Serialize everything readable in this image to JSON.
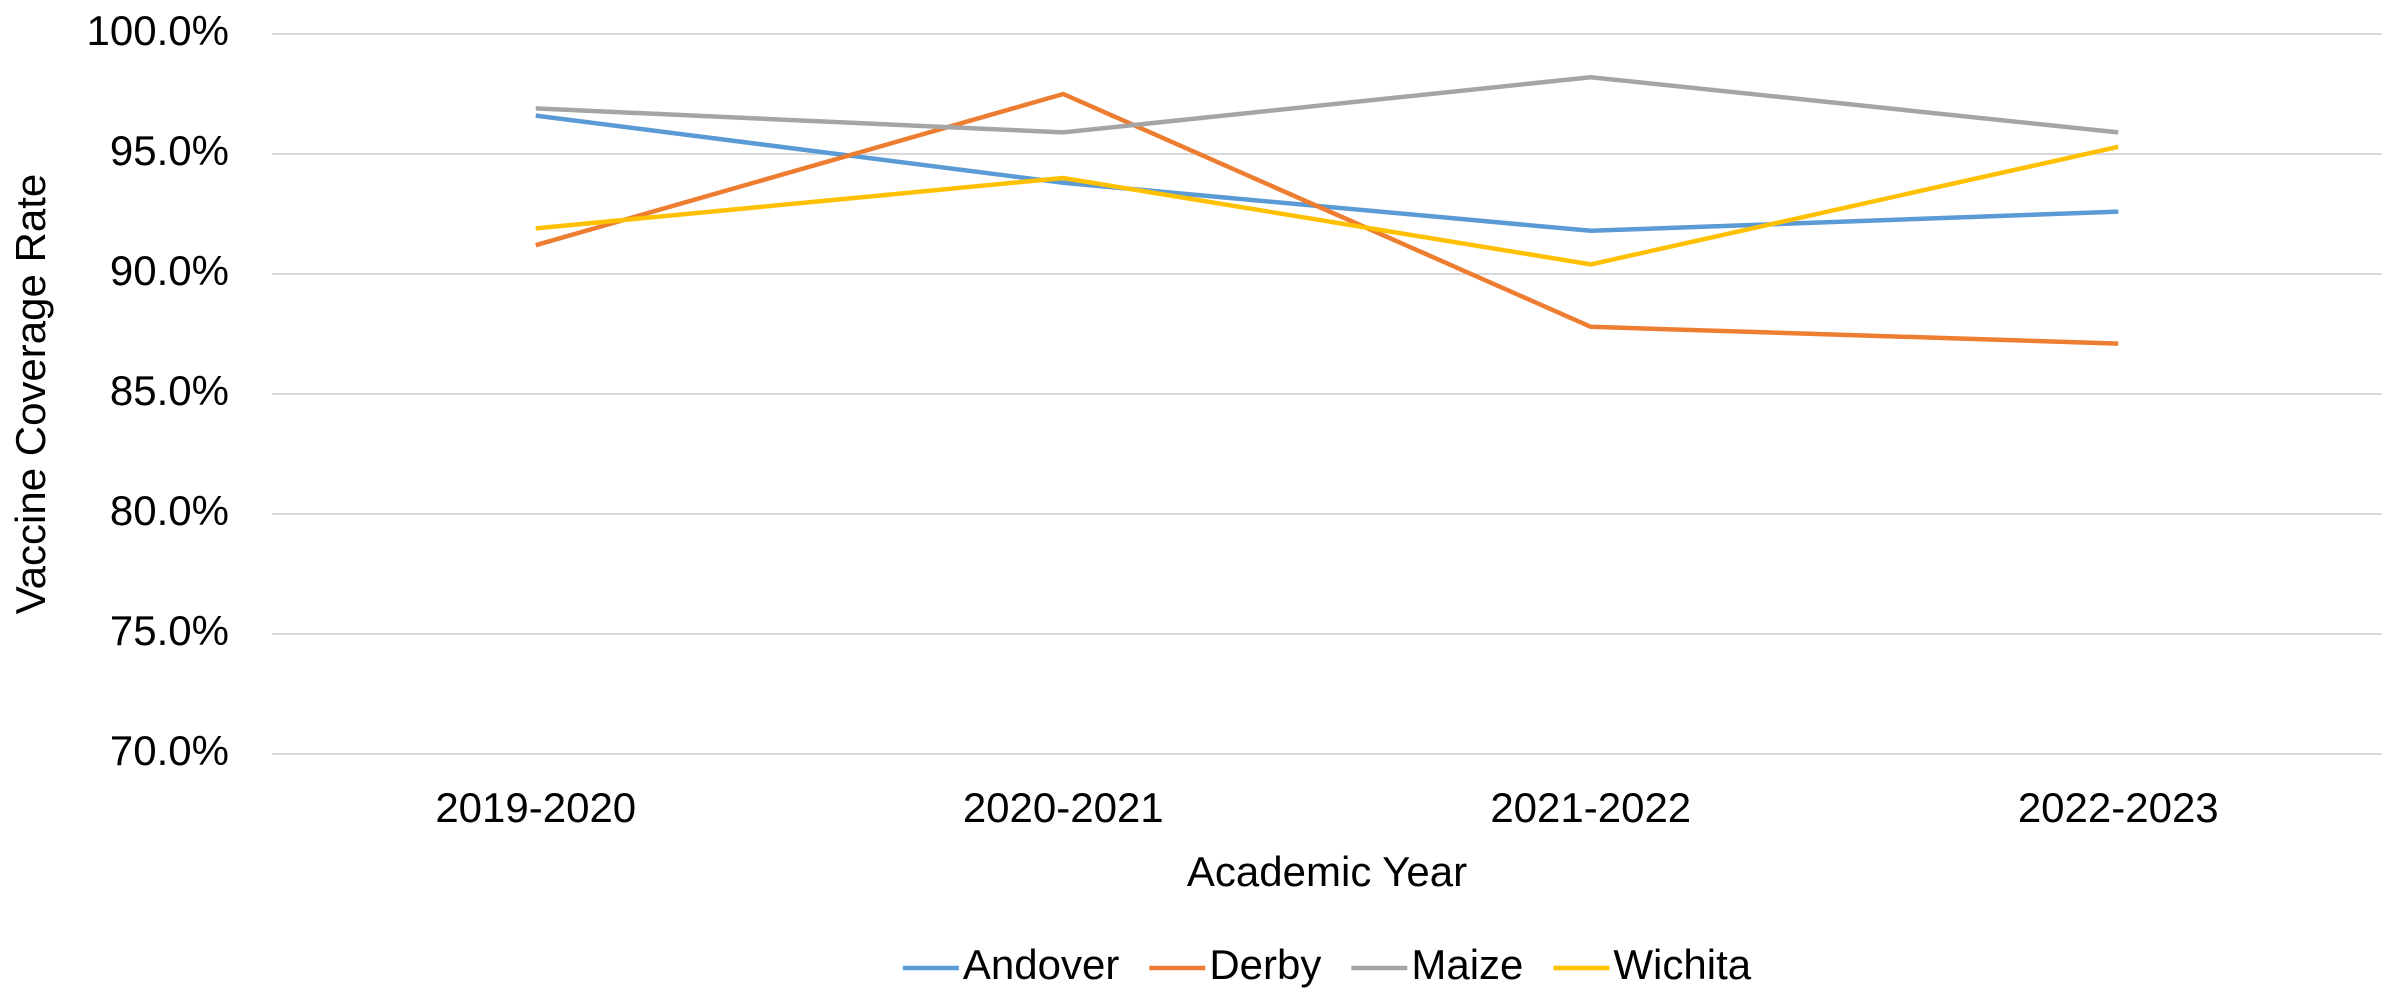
{
  "chart_data": {
    "type": "line",
    "x_label": "Academic Year",
    "y_label": "Vaccine Coverage Rate",
    "categories": [
      "2019-2020",
      "2020-2021",
      "2021-2022",
      "2022-2023"
    ],
    "series": [
      {
        "name": "Andover",
        "color": "#5b9bd5",
        "values": [
          96.6,
          93.8,
          91.8,
          92.6
        ]
      },
      {
        "name": "Derby",
        "color": "#ed7d31",
        "values": [
          91.2,
          97.5,
          87.8,
          87.1
        ]
      },
      {
        "name": "Maize",
        "color": "#a5a5a5",
        "values": [
          96.9,
          95.9,
          98.2,
          95.9
        ]
      },
      {
        "name": "Wichita",
        "color": "#ffc000",
        "values": [
          91.9,
          94.0,
          90.4,
          95.3
        ]
      }
    ],
    "ylim": [
      70,
      100
    ],
    "yticks": [
      {
        "value": 70,
        "label": "70.0%"
      },
      {
        "value": 75,
        "label": "75.0%"
      },
      {
        "value": 80,
        "label": "80.0%"
      },
      {
        "value": 85,
        "label": "85.0%"
      },
      {
        "value": 90,
        "label": "90.0%"
      },
      {
        "value": 95,
        "label": "95.0%"
      },
      {
        "value": 100,
        "label": "100.0%"
      }
    ],
    "grid": true,
    "legend": "bottom"
  }
}
